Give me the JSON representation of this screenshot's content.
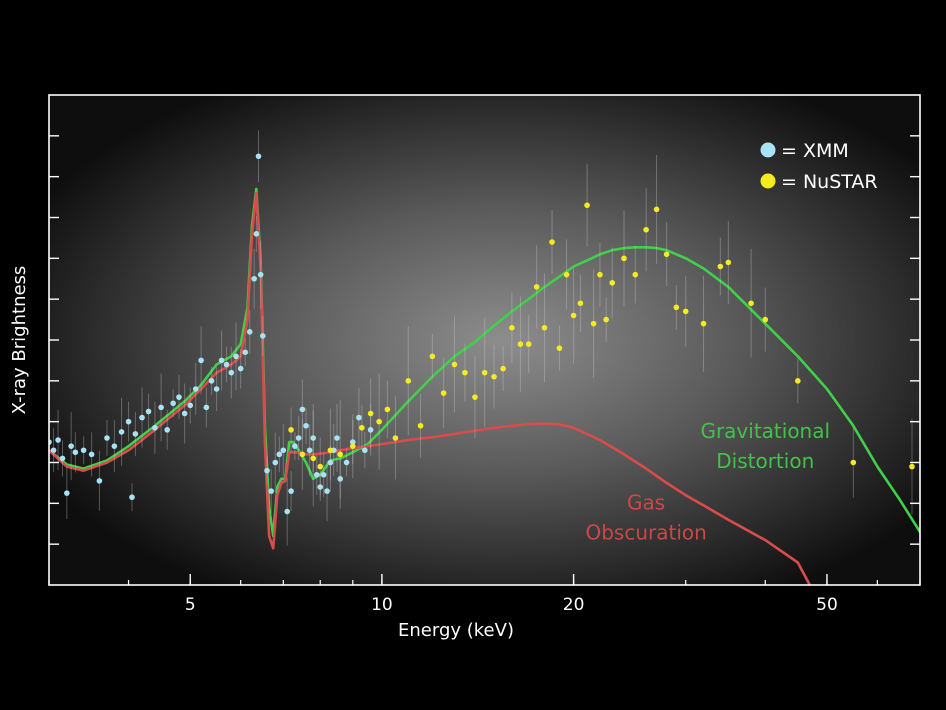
{
  "chart_data": {
    "type": "scatter",
    "xlabel": "Energy (keV)",
    "ylabel": "X-ray Brightness",
    "xscale": "log",
    "xlim": [
      3,
      70
    ],
    "ylim": [
      0,
      12
    ],
    "x_ticks": [
      5,
      10,
      20,
      50
    ],
    "x_tick_labels": [
      "5",
      "10",
      "20",
      "50"
    ],
    "y_tick_values": [
      1,
      2,
      3,
      4,
      5,
      6,
      7,
      8,
      9,
      10,
      11
    ],
    "legend_position": "top-right",
    "background": "radial gray gradient",
    "legend": [
      {
        "label": "= XMM",
        "color": "#a8e2f5"
      },
      {
        "label": "= NuSTAR",
        "color": "#f4ec1e"
      }
    ],
    "annotations": [
      {
        "lines": [
          "Gravitational",
          "Distortion"
        ],
        "color": "#42c24a",
        "x": 40,
        "y": 3.6
      },
      {
        "lines": [
          "Gas",
          "Obscuration"
        ],
        "color": "#cf4646",
        "x": 26,
        "y": 1.85
      }
    ],
    "series": [
      {
        "label": "Gravitational Distortion",
        "kind": "line",
        "color": "#40d04a",
        "x": [
          3.0,
          3.2,
          3.4,
          3.7,
          4.0,
          4.4,
          4.9,
          5.2,
          5.5,
          5.8,
          6.0,
          6.15,
          6.25,
          6.35,
          6.45,
          6.55,
          6.65,
          6.75,
          6.85,
          6.95,
          7.05,
          7.15,
          7.25,
          7.4,
          7.6,
          7.8,
          8.0,
          8.3,
          8.6,
          9.0,
          9.5,
          10.0,
          11.0,
          12.0,
          13.0,
          14.0,
          15.0,
          16.0,
          17.0,
          18.0,
          19.0,
          20.0,
          21.0,
          22.0,
          23.0,
          24.0,
          25.0,
          26.0,
          27.0,
          28.0,
          30.0,
          32.0,
          35.0,
          40.0,
          45.0,
          50.0,
          55.0,
          60.0,
          65.0,
          70.0
        ],
        "y": [
          3.3,
          2.95,
          2.85,
          3.05,
          3.4,
          3.9,
          4.5,
          4.9,
          5.4,
          5.6,
          5.9,
          6.8,
          8.8,
          9.7,
          7.9,
          3.9,
          1.9,
          1.2,
          2.4,
          2.6,
          2.6,
          3.5,
          3.5,
          3.3,
          3.0,
          2.6,
          2.7,
          3.05,
          3.1,
          3.25,
          3.45,
          3.8,
          4.5,
          5.1,
          5.6,
          5.95,
          6.35,
          6.7,
          7.0,
          7.3,
          7.55,
          7.8,
          7.95,
          8.1,
          8.2,
          8.25,
          8.27,
          8.27,
          8.25,
          8.2,
          8.0,
          7.75,
          7.3,
          6.4,
          5.6,
          4.8,
          3.9,
          2.9,
          2.1,
          1.3
        ]
      },
      {
        "label": "Gas Obscuration",
        "kind": "line",
        "color": "#d94c4c",
        "x": [
          3.0,
          3.2,
          3.4,
          3.7,
          4.0,
          4.4,
          4.9,
          5.2,
          5.5,
          5.8,
          6.0,
          6.15,
          6.25,
          6.35,
          6.45,
          6.55,
          6.65,
          6.75,
          6.85,
          6.95,
          7.05,
          7.15,
          7.25,
          7.4,
          7.6,
          7.8,
          8.0,
          8.3,
          8.6,
          9.0,
          9.5,
          10.0,
          11.0,
          12.0,
          13.0,
          14.0,
          15.0,
          16.0,
          17.0,
          18.0,
          19.0,
          20.0,
          22.0,
          24.0,
          26.0,
          28.0,
          30.0,
          32.0,
          35.0,
          40.0,
          45.0,
          47.0
        ],
        "y": [
          3.3,
          2.9,
          2.8,
          3.0,
          3.3,
          3.8,
          4.4,
          4.8,
          5.2,
          5.4,
          5.6,
          6.5,
          8.6,
          9.6,
          7.7,
          3.5,
          1.2,
          0.9,
          2.2,
          2.5,
          2.55,
          3.25,
          3.25,
          3.25,
          3.2,
          3.2,
          3.22,
          3.25,
          3.3,
          3.35,
          3.4,
          3.45,
          3.55,
          3.62,
          3.7,
          3.78,
          3.85,
          3.9,
          3.94,
          3.95,
          3.93,
          3.85,
          3.55,
          3.2,
          2.85,
          2.5,
          2.2,
          1.95,
          1.6,
          1.1,
          0.55,
          0.0
        ]
      },
      {
        "label": "= XMM",
        "kind": "points",
        "color": "#a8e2f5",
        "x": [
          3.0,
          3.05,
          3.1,
          3.15,
          3.2,
          3.25,
          3.3,
          3.4,
          3.5,
          3.6,
          3.7,
          3.8,
          3.9,
          4.0,
          4.05,
          4.1,
          4.2,
          4.3,
          4.4,
          4.5,
          4.6,
          4.7,
          4.8,
          4.9,
          5.0,
          5.1,
          5.2,
          5.3,
          5.4,
          5.5,
          5.6,
          5.7,
          5.8,
          5.9,
          6.0,
          6.1,
          6.2,
          6.3,
          6.35,
          6.4,
          6.45,
          6.5,
          6.6,
          6.7,
          6.8,
          6.9,
          7.0,
          7.1,
          7.2,
          7.3,
          7.4,
          7.5,
          7.6,
          7.7,
          7.8,
          7.9,
          8.0,
          8.1,
          8.2,
          8.3,
          8.4,
          8.5,
          8.6,
          8.8,
          9.0,
          9.2,
          9.4,
          9.6
        ],
        "y": [
          3.5,
          3.3,
          3.55,
          3.1,
          2.25,
          3.4,
          3.25,
          3.3,
          3.2,
          2.55,
          3.6,
          3.4,
          3.75,
          4.0,
          2.15,
          3.7,
          4.1,
          4.25,
          3.85,
          4.35,
          3.8,
          4.45,
          4.6,
          4.2,
          4.4,
          4.8,
          5.5,
          4.35,
          5.0,
          4.8,
          5.5,
          5.4,
          5.2,
          5.6,
          5.3,
          5.7,
          6.2,
          7.5,
          8.6,
          10.5,
          7.6,
          6.1,
          2.8,
          2.3,
          3.0,
          3.2,
          3.3,
          1.8,
          2.3,
          3.4,
          3.6,
          4.3,
          3.9,
          3.3,
          3.6,
          2.7,
          2.4,
          2.7,
          2.3,
          3.0,
          3.3,
          3.6,
          2.6,
          3.0,
          3.5,
          4.1,
          3.3,
          3.8
        ]
      },
      {
        "label": "= NuSTAR",
        "kind": "points",
        "color": "#f4ec1e",
        "x": [
          7.2,
          7.5,
          7.8,
          8.0,
          8.3,
          8.6,
          9.0,
          9.3,
          9.6,
          9.9,
          10.2,
          10.5,
          11.0,
          11.5,
          12.0,
          12.5,
          13.0,
          13.5,
          14.0,
          14.5,
          15.0,
          15.5,
          16.0,
          16.5,
          17.0,
          17.5,
          18.0,
          18.5,
          19.0,
          19.5,
          20.0,
          20.5,
          21.0,
          21.5,
          22.0,
          22.5,
          23.0,
          24.0,
          25.0,
          26.0,
          27.0,
          28.0,
          29.0,
          30.0,
          32.0,
          34.0,
          35.0,
          38.0,
          40.0,
          45.0,
          55.0,
          68.0
        ],
        "y": [
          3.8,
          3.2,
          3.1,
          2.9,
          3.3,
          3.2,
          3.4,
          3.85,
          4.2,
          4.0,
          4.3,
          3.6,
          5.0,
          3.9,
          5.6,
          4.7,
          5.4,
          5.2,
          4.6,
          5.2,
          5.1,
          5.3,
          6.3,
          5.9,
          5.9,
          7.3,
          6.3,
          8.4,
          5.8,
          7.6,
          6.6,
          6.9,
          9.3,
          6.4,
          7.6,
          6.5,
          7.4,
          8.0,
          7.6,
          8.7,
          9.2,
          8.1,
          6.8,
          6.7,
          6.4,
          7.8,
          7.9,
          6.9,
          6.5,
          5.0,
          3.0,
          2.9
        ]
      }
    ]
  }
}
